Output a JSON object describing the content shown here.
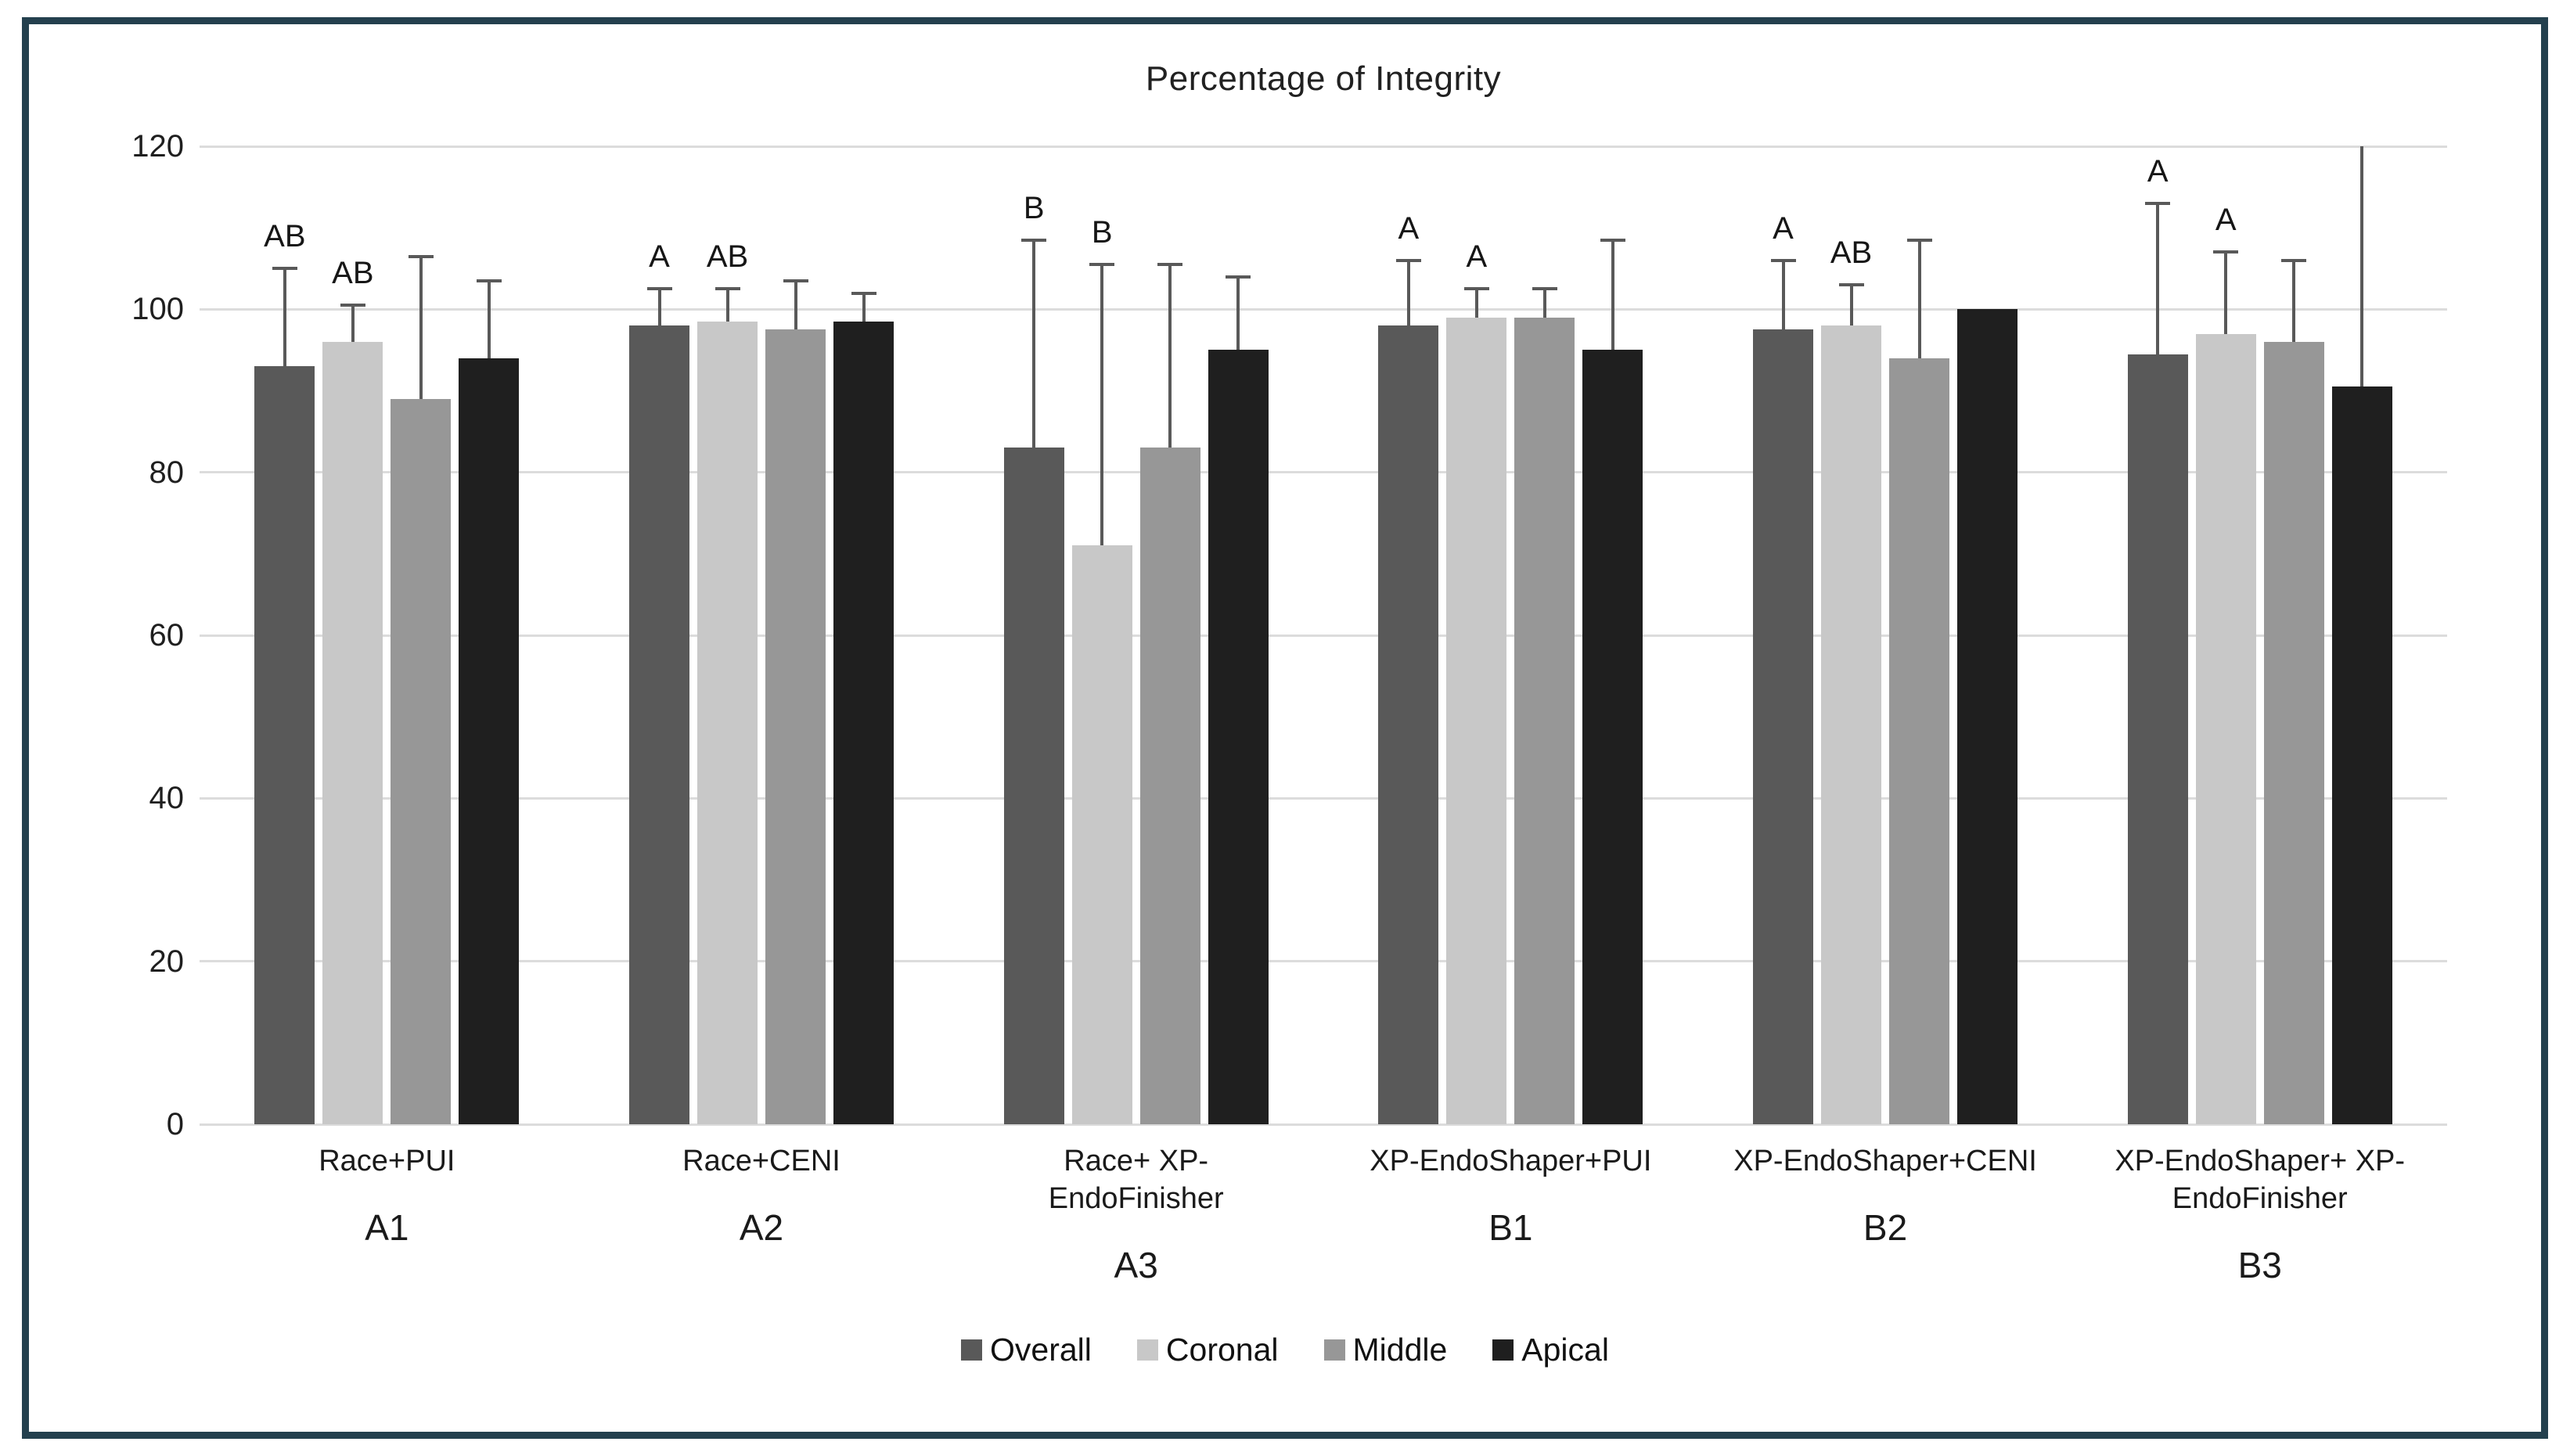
{
  "style": {
    "frame_color": "#24404e",
    "gridline_color": "#dcdcdc",
    "error_bar_color": "#595959",
    "background": "#ffffff"
  },
  "chart_data": {
    "type": "bar",
    "title": "Percentage of Integrity",
    "xlabel": "",
    "ylabel": "",
    "ylim": [
      0,
      120
    ],
    "yticks": [
      0,
      20,
      40,
      60,
      80,
      100,
      120
    ],
    "grid": true,
    "legend_position": "bottom",
    "series": [
      {
        "name": "Overall",
        "color": "#595959"
      },
      {
        "name": "Coronal",
        "color": "#c8c8c8"
      },
      {
        "name": "Middle",
        "color": "#979797"
      },
      {
        "name": "Apical",
        "color": "#1f1f1f"
      }
    ],
    "groups": [
      {
        "label": "Race+PUI",
        "label_lines": [
          "Race+PUI"
        ],
        "code": "A1",
        "values": [
          93,
          96,
          89,
          94
        ],
        "error_top": [
          105,
          100.5,
          106.5,
          103.5
        ],
        "annotations": [
          "AB",
          "AB",
          null,
          null
        ]
      },
      {
        "label": "Race+CENI",
        "label_lines": [
          "Race+CENI"
        ],
        "code": "A2",
        "values": [
          98,
          98.5,
          97.5,
          98.5
        ],
        "error_top": [
          102.5,
          102.5,
          103.5,
          102
        ],
        "annotations": [
          "A",
          "AB",
          null,
          null
        ]
      },
      {
        "label": "Race+ XP-EndoFinisher",
        "label_lines": [
          "Race+ XP-",
          "EndoFinisher"
        ],
        "code": "A3",
        "values": [
          83,
          71,
          83,
          95
        ],
        "error_top": [
          108.5,
          105.5,
          105.5,
          104
        ],
        "annotations": [
          "B",
          "B",
          null,
          null
        ]
      },
      {
        "label": "XP-EndoShaper+PUI",
        "label_lines": [
          "XP-EndoShaper+PUI"
        ],
        "code": "B1",
        "values": [
          98,
          99,
          99,
          95
        ],
        "error_top": [
          106,
          102.5,
          102.5,
          108.5
        ],
        "annotations": [
          "A",
          "A",
          null,
          null
        ]
      },
      {
        "label": "XP-EndoShaper+CENI",
        "label_lines": [
          "XP-EndoShaper+CENI"
        ],
        "code": "B2",
        "values": [
          97.5,
          98,
          94,
          100
        ],
        "error_top": [
          106,
          103,
          108.5,
          null
        ],
        "annotations": [
          "A",
          "AB",
          null,
          null
        ]
      },
      {
        "label": "XP-EndoShaper+ XP-EndoFinisher",
        "label_lines": [
          "XP-EndoShaper+ XP-",
          "EndoFinisher"
        ],
        "code": "B3",
        "values": [
          94.5,
          97,
          96,
          90.5
        ],
        "error_top": [
          113,
          107,
          106,
          120
        ],
        "annotations": [
          "A",
          "A",
          null,
          null
        ]
      }
    ]
  }
}
